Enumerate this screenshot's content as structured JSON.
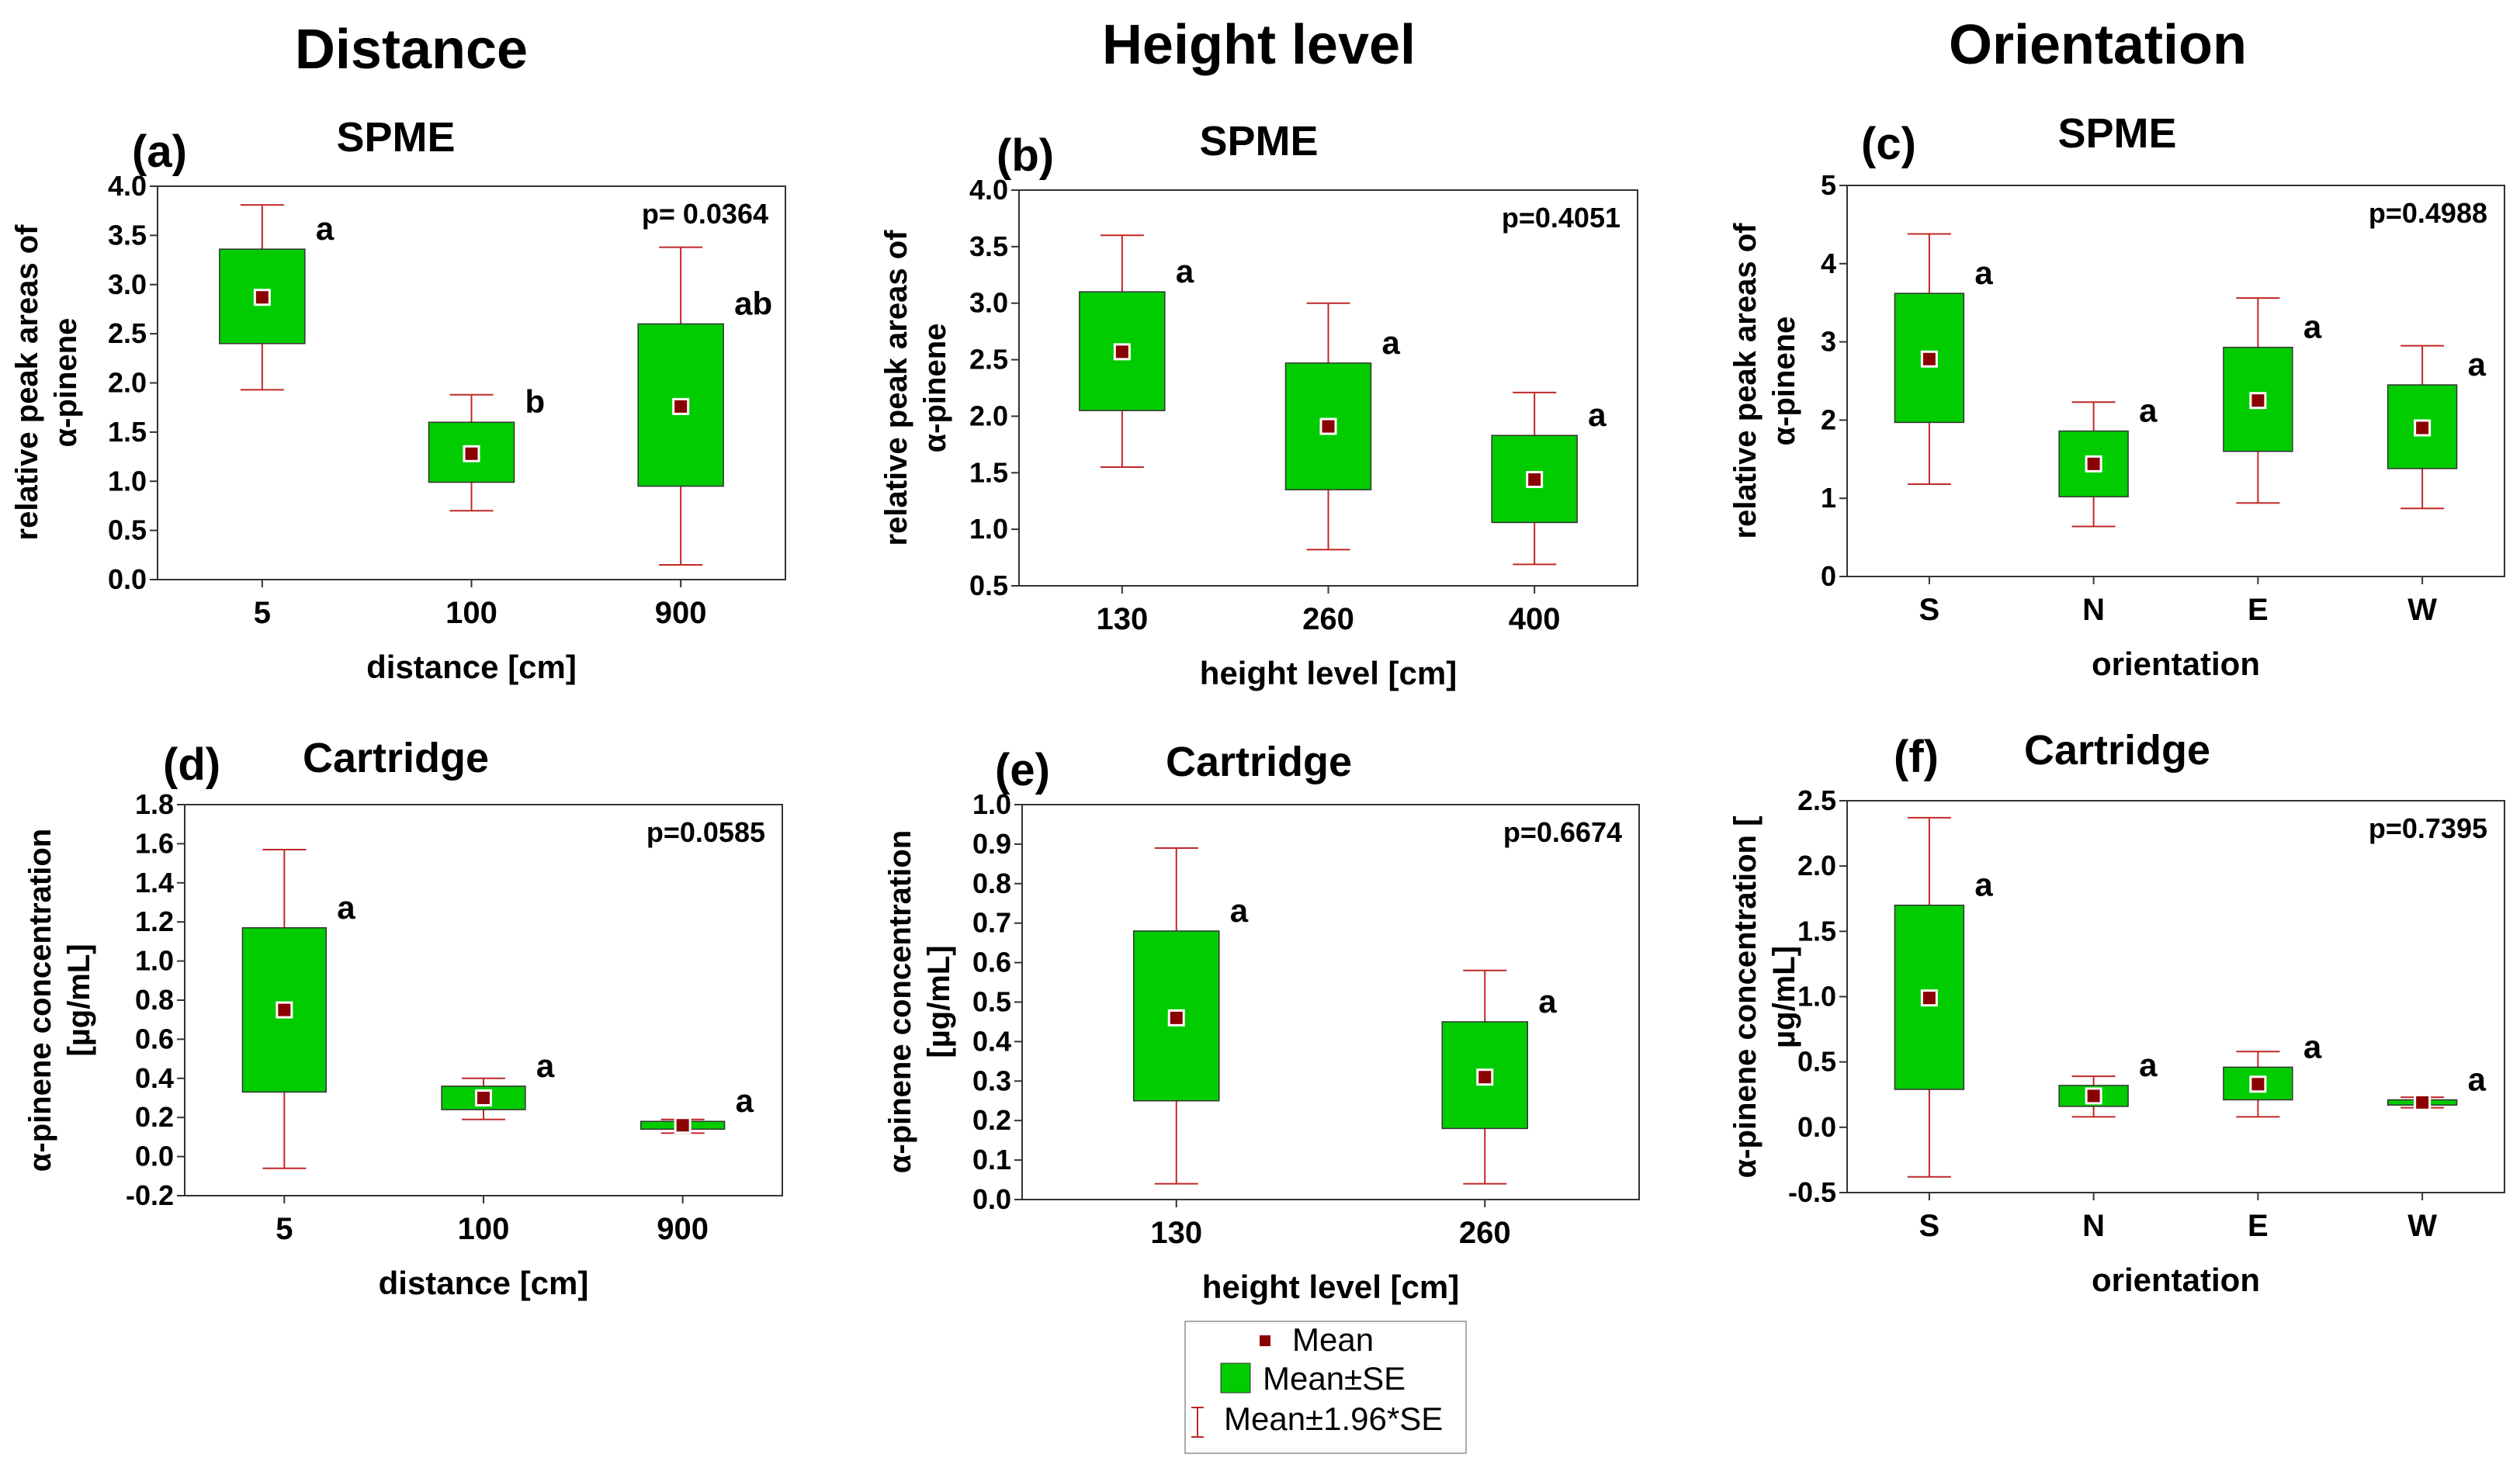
{
  "column_headers": [
    "Distance",
    "Height level",
    "Orientation"
  ],
  "colors": {
    "box": "#00cc00",
    "whisker": "#c02828",
    "mean": "#8b0000",
    "frame": "#333333",
    "significant": "#ff0000"
  },
  "legend": {
    "mean": "Mean",
    "se": "Mean±SE",
    "ci": "Mean±1.96*SE"
  },
  "chart_data": [
    {
      "type": "box",
      "tag": "(a)",
      "title": "SPME",
      "pvalue": "p= 0.0364",
      "significant": true,
      "xlabel": "distance [cm]",
      "ylabel": [
        "relative peak areas of",
        "α-pinene"
      ],
      "ylim": [
        0,
        4
      ],
      "yticks": [
        "0.0",
        "0.5",
        "1.0",
        "1.5",
        "2.0",
        "2.5",
        "3.0",
        "3.5",
        "4.0"
      ],
      "categories": [
        "5",
        "100",
        "900"
      ],
      "mean": [
        2.87,
        1.28,
        1.76
      ],
      "se_low": [
        2.4,
        0.99,
        0.95
      ],
      "se_high": [
        3.36,
        1.6,
        2.6
      ],
      "ci_low": [
        1.93,
        0.7,
        0.15
      ],
      "ci_high": [
        3.81,
        1.88,
        3.38
      ],
      "letters": [
        "a",
        "b",
        "ab"
      ]
    },
    {
      "type": "box",
      "tag": "(b)",
      "title": "SPME",
      "pvalue": "p=0.4051",
      "significant": false,
      "xlabel": "height level [cm]",
      "ylabel": [
        "relative peak areas of",
        "α-pinene"
      ],
      "ylim": [
        0.5,
        4
      ],
      "yticks": [
        "0.5",
        "1.0",
        "1.5",
        "2.0",
        "2.5",
        "3.0",
        "3.5",
        "4.0"
      ],
      "categories": [
        "130",
        "260",
        "400"
      ],
      "mean": [
        2.57,
        1.91,
        1.44
      ],
      "se_low": [
        2.05,
        1.35,
        1.06
      ],
      "se_high": [
        3.1,
        2.47,
        1.83
      ],
      "ci_low": [
        1.55,
        0.82,
        0.69
      ],
      "ci_high": [
        3.6,
        3.0,
        2.21
      ],
      "letters": [
        "a",
        "a",
        "a"
      ]
    },
    {
      "type": "box",
      "tag": "(c)",
      "title": "SPME",
      "pvalue": "p=0.4988",
      "significant": false,
      "xlabel": "orientation",
      "ylabel": [
        "relative peak areas of",
        "α-pinene"
      ],
      "ylim": [
        0,
        5
      ],
      "yticks": [
        "0",
        "1",
        "2",
        "3",
        "4",
        "5"
      ],
      "categories": [
        "S",
        "N",
        "E",
        "W"
      ],
      "mean": [
        2.78,
        1.44,
        2.25,
        1.9
      ],
      "se_low": [
        1.97,
        1.02,
        1.6,
        1.38
      ],
      "se_high": [
        3.62,
        1.86,
        2.93,
        2.45
      ],
      "ci_low": [
        1.18,
        0.64,
        0.94,
        0.87
      ],
      "ci_high": [
        4.38,
        2.23,
        3.56,
        2.95
      ],
      "letters": [
        "a",
        "a",
        "a",
        "a"
      ]
    },
    {
      "type": "box",
      "tag": "(d)",
      "title": "Cartridge",
      "pvalue": "p=0.0585",
      "significant": false,
      "xlabel": "distance [cm]",
      "ylabel": [
        "α-pinene concentration",
        "[µg/mL]"
      ],
      "ylim": [
        -0.2,
        1.8
      ],
      "yticks": [
        "-0.2",
        "0.0",
        "0.2",
        "0.4",
        "0.6",
        "0.8",
        "1.0",
        "1.2",
        "1.4",
        "1.6",
        "1.8"
      ],
      "categories": [
        "5",
        "100",
        "900"
      ],
      "mean": [
        0.75,
        0.3,
        0.16
      ],
      "se_low": [
        0.33,
        0.24,
        0.14
      ],
      "se_high": [
        1.17,
        0.36,
        0.18
      ],
      "ci_low": [
        -0.06,
        0.19,
        0.12
      ],
      "ci_high": [
        1.57,
        0.4,
        0.19
      ],
      "letters": [
        "a",
        "a",
        "a"
      ]
    },
    {
      "type": "box",
      "tag": "(e)",
      "title": "Cartridge",
      "pvalue": "p=0.6674",
      "significant": false,
      "xlabel": "height level [cm]",
      "ylabel": [
        "α-pinene concentration",
        "[µg/mL]"
      ],
      "ylim": [
        0,
        1
      ],
      "yticks": [
        "0.0",
        "0.1",
        "0.2",
        "0.3",
        "0.4",
        "0.5",
        "0.6",
        "0.7",
        "0.8",
        "0.9",
        "1.0"
      ],
      "categories": [
        "130",
        "260"
      ],
      "mean": [
        0.46,
        0.31
      ],
      "se_low": [
        0.25,
        0.18
      ],
      "se_high": [
        0.68,
        0.45
      ],
      "ci_low": [
        0.04,
        0.04
      ],
      "ci_high": [
        0.89,
        0.58
      ],
      "letters": [
        "a",
        "a"
      ]
    },
    {
      "type": "box",
      "tag": "(f)",
      "title": "Cartridge",
      "pvalue": "p=0.7395",
      "significant": false,
      "xlabel": "orientation",
      "ylabel": [
        "α-pinene concentration [",
        "µg/mL]"
      ],
      "ylim": [
        -0.5,
        2.5
      ],
      "yticks": [
        "-0.5",
        "0.0",
        "0.5",
        "1.0",
        "1.5",
        "2.0",
        "2.5"
      ],
      "categories": [
        "S",
        "N",
        "E",
        "W"
      ],
      "mean": [
        0.99,
        0.24,
        0.33,
        0.19
      ],
      "se_low": [
        0.29,
        0.16,
        0.21,
        0.17
      ],
      "se_high": [
        1.7,
        0.32,
        0.46,
        0.21
      ],
      "ci_low": [
        -0.38,
        0.08,
        0.08,
        0.15
      ],
      "ci_high": [
        2.37,
        0.39,
        0.58,
        0.23
      ],
      "letters": [
        "a",
        "a",
        "a",
        "a"
      ]
    }
  ]
}
